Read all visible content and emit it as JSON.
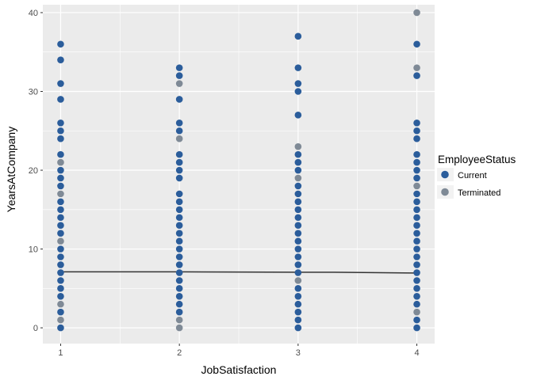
{
  "chart_data": {
    "type": "scatter",
    "xlabel": "JobSatisfaction",
    "ylabel": "YearsAtCompany",
    "x_ticks": [
      1,
      2,
      3,
      4
    ],
    "y_ticks": [
      0,
      10,
      20,
      30,
      40
    ],
    "xlim": [
      0.85,
      4.15
    ],
    "ylim": [
      -2,
      41
    ],
    "grid": true,
    "legend": {
      "title": "EmployeeStatus",
      "position": "right",
      "entries": [
        "Current",
        "Terminated"
      ]
    },
    "colors": {
      "Current": "#2b5d9b",
      "Terminated": "#7f8a96",
      "trend": "#333333",
      "panel": "#ebebeb",
      "grid": "#ffffff"
    },
    "series": [
      {
        "name": "Current",
        "points": [
          [
            1,
            0
          ],
          [
            1,
            2
          ],
          [
            1,
            4
          ],
          [
            1,
            5
          ],
          [
            1,
            6
          ],
          [
            1,
            7
          ],
          [
            1,
            8
          ],
          [
            1,
            9
          ],
          [
            1,
            10
          ],
          [
            1,
            12
          ],
          [
            1,
            13
          ],
          [
            1,
            14
          ],
          [
            1,
            15
          ],
          [
            1,
            16
          ],
          [
            1,
            18
          ],
          [
            1,
            19
          ],
          [
            1,
            20
          ],
          [
            1,
            22
          ],
          [
            1,
            24
          ],
          [
            1,
            25
          ],
          [
            1,
            26
          ],
          [
            1,
            29
          ],
          [
            1,
            31
          ],
          [
            1,
            34
          ],
          [
            1,
            36
          ],
          [
            2,
            2
          ],
          [
            2,
            3
          ],
          [
            2,
            4
          ],
          [
            2,
            5
          ],
          [
            2,
            6
          ],
          [
            2,
            7
          ],
          [
            2,
            8
          ],
          [
            2,
            9
          ],
          [
            2,
            10
          ],
          [
            2,
            11
          ],
          [
            2,
            12
          ],
          [
            2,
            13
          ],
          [
            2,
            14
          ],
          [
            2,
            15
          ],
          [
            2,
            16
          ],
          [
            2,
            17
          ],
          [
            2,
            19
          ],
          [
            2,
            20
          ],
          [
            2,
            21
          ],
          [
            2,
            22
          ],
          [
            2,
            25
          ],
          [
            2,
            26
          ],
          [
            2,
            29
          ],
          [
            2,
            32
          ],
          [
            2,
            33
          ],
          [
            3,
            0
          ],
          [
            3,
            1
          ],
          [
            3,
            2
          ],
          [
            3,
            3
          ],
          [
            3,
            4
          ],
          [
            3,
            5
          ],
          [
            3,
            7
          ],
          [
            3,
            8
          ],
          [
            3,
            9
          ],
          [
            3,
            10
          ],
          [
            3,
            11
          ],
          [
            3,
            12
          ],
          [
            3,
            13
          ],
          [
            3,
            14
          ],
          [
            3,
            15
          ],
          [
            3,
            16
          ],
          [
            3,
            17
          ],
          [
            3,
            18
          ],
          [
            3,
            20
          ],
          [
            3,
            21
          ],
          [
            3,
            22
          ],
          [
            3,
            27
          ],
          [
            3,
            30
          ],
          [
            3,
            31
          ],
          [
            3,
            33
          ],
          [
            3,
            37
          ],
          [
            4,
            0
          ],
          [
            4,
            1
          ],
          [
            4,
            3
          ],
          [
            4,
            4
          ],
          [
            4,
            5
          ],
          [
            4,
            6
          ],
          [
            4,
            7
          ],
          [
            4,
            8
          ],
          [
            4,
            9
          ],
          [
            4,
            10
          ],
          [
            4,
            11
          ],
          [
            4,
            12
          ],
          [
            4,
            13
          ],
          [
            4,
            14
          ],
          [
            4,
            15
          ],
          [
            4,
            16
          ],
          [
            4,
            17
          ],
          [
            4,
            19
          ],
          [
            4,
            20
          ],
          [
            4,
            21
          ],
          [
            4,
            22
          ],
          [
            4,
            24
          ],
          [
            4,
            25
          ],
          [
            4,
            26
          ],
          [
            4,
            32
          ],
          [
            4,
            36
          ]
        ]
      },
      {
        "name": "Terminated",
        "points": [
          [
            1,
            1
          ],
          [
            1,
            3
          ],
          [
            1,
            11
          ],
          [
            1,
            17
          ],
          [
            1,
            21
          ],
          [
            2,
            0
          ],
          [
            2,
            1
          ],
          [
            2,
            24
          ],
          [
            2,
            31
          ],
          [
            3,
            6
          ],
          [
            3,
            19
          ],
          [
            3,
            23
          ],
          [
            4,
            2
          ],
          [
            4,
            18
          ],
          [
            4,
            33
          ],
          [
            4,
            40
          ]
        ]
      }
    ],
    "trend": [
      [
        1,
        7.1
      ],
      [
        2,
        7.1
      ],
      [
        3.3,
        7.05
      ],
      [
        4,
        6.95
      ]
    ]
  }
}
